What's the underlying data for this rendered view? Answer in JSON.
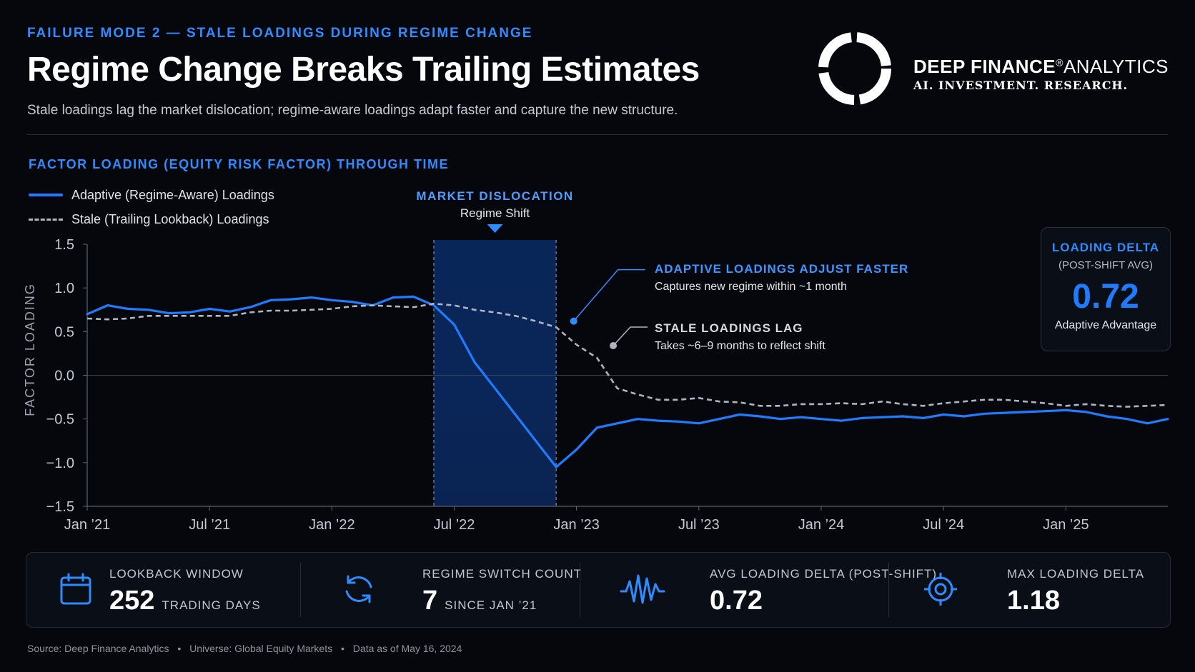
{
  "header": {
    "eyebrow": "FAILURE MODE 2 — STALE LOADINGS DURING REGIME CHANGE",
    "title": "Regime Change Breaks Trailing Estimates",
    "subtitle": "Stale loadings lag the market dislocation; regime-aware loadings adapt faster and capture the new structure."
  },
  "brand": {
    "name_bold": "DEEP FINANCE",
    "registered": "®",
    "name_light": "ANALYTICS",
    "tagline": "AI. INVESTMENT. RESEARCH.",
    "logo_icon": "ring-logo-icon"
  },
  "chart_heading": "FACTOR LOADING (EQUITY RISK FACTOR) THROUGH TIME",
  "legend": {
    "adaptive": "Adaptive (Regime-Aware) Loadings",
    "stale": "Stale (Trailing Lookback) Loadings"
  },
  "annotations": {
    "dislocation_title": "MARKET DISLOCATION",
    "dislocation_sub": "Regime Shift",
    "adaptive_title": "ADAPTIVE LOADINGS ADJUST FASTER",
    "adaptive_sub": "Captures new regime within ~1 month",
    "stale_title": "STALE LOADINGS LAG",
    "stale_sub": "Takes ~6–9 months to reflect shift"
  },
  "delta_card": {
    "label": "LOADING DELTA",
    "sublabel": "(POST-SHIFT AVG)",
    "value": "0.72",
    "caption": "Adaptive Advantage"
  },
  "stats": [
    {
      "icon": "calendar-icon",
      "label": "LOOKBACK WINDOW",
      "value": "252",
      "unit": "TRADING DAYS"
    },
    {
      "icon": "refresh-icon",
      "label": "REGIME SWITCH COUNT",
      "value": "7",
      "unit": "SINCE JAN ’21"
    },
    {
      "icon": "wave-icon",
      "label": "AVG LOADING DELTA (POST-SHIFT)",
      "value": "0.72",
      "unit": ""
    },
    {
      "icon": "target-icon",
      "label": "MAX LOADING DELTA",
      "value": "1.18",
      "unit": ""
    }
  ],
  "footer": {
    "source": "Source:  Deep Finance Analytics",
    "universe": "Universe: Global Equity Markets",
    "asof": "Data as of May 16, 2024",
    "bullet": "•"
  },
  "colors": {
    "accent": "#2f8cff",
    "adaptive_line": "#1f7cff",
    "stale_line": "#aeb5c2",
    "background": "#05070d"
  },
  "chart_data": {
    "type": "line",
    "ylabel": "FACTOR LOADING",
    "xlabel": "",
    "ylim": [
      -1.5,
      1.5
    ],
    "yticks": [
      1.5,
      1.0,
      0.5,
      0.0,
      -0.5,
      -1.0,
      -1.5
    ],
    "ytick_labels": [
      "1.5",
      "1.0",
      "0.5",
      "0.0",
      "−0.5",
      "−1.0",
      "−1.5"
    ],
    "xlim": [
      "2021-01",
      "2025-06"
    ],
    "xticks": [
      "2021-01",
      "2021-07",
      "2022-01",
      "2022-07",
      "2023-01",
      "2023-07",
      "2024-01",
      "2024-07",
      "2025-01"
    ],
    "xtick_labels": [
      "Jan ’21",
      "Jul ’21",
      "Jan ’22",
      "Jul ’22",
      "Jan ’23",
      "Jul ’23",
      "Jan ’24",
      "Jul ’24",
      "Jan ’25"
    ],
    "shaded_region": {
      "start": "2022-06",
      "end": "2022-12",
      "label": "MARKET DISLOCATION"
    },
    "x": [
      "2021-01",
      "2021-02",
      "2021-03",
      "2021-04",
      "2021-05",
      "2021-06",
      "2021-07",
      "2021-08",
      "2021-09",
      "2021-10",
      "2021-11",
      "2021-12",
      "2022-01",
      "2022-02",
      "2022-03",
      "2022-04",
      "2022-05",
      "2022-06",
      "2022-07",
      "2022-08",
      "2022-09",
      "2022-10",
      "2022-11",
      "2022-12",
      "2023-01",
      "2023-02",
      "2023-03",
      "2023-04",
      "2023-05",
      "2023-06",
      "2023-07",
      "2023-08",
      "2023-09",
      "2023-10",
      "2023-11",
      "2023-12",
      "2024-01",
      "2024-02",
      "2024-03",
      "2024-04",
      "2024-05",
      "2024-06",
      "2024-07",
      "2024-08",
      "2024-09",
      "2024-10",
      "2024-11",
      "2024-12",
      "2025-01",
      "2025-02",
      "2025-03",
      "2025-04",
      "2025-05",
      "2025-06"
    ],
    "series": [
      {
        "name": "Adaptive (Regime-Aware) Loadings",
        "style": "solid",
        "values": [
          0.7,
          0.8,
          0.76,
          0.75,
          0.71,
          0.72,
          0.76,
          0.73,
          0.78,
          0.86,
          0.87,
          0.89,
          0.86,
          0.84,
          0.8,
          0.89,
          0.9,
          0.8,
          0.58,
          0.15,
          -0.15,
          -0.45,
          -0.75,
          -1.05,
          -0.85,
          -0.6,
          -0.55,
          -0.5,
          -0.52,
          -0.53,
          -0.55,
          -0.5,
          -0.45,
          -0.47,
          -0.5,
          -0.48,
          -0.5,
          -0.52,
          -0.49,
          -0.48,
          -0.47,
          -0.49,
          -0.45,
          -0.47,
          -0.44,
          -0.43,
          -0.42,
          -0.41,
          -0.4,
          -0.42,
          -0.47,
          -0.5,
          -0.55,
          -0.5
        ]
      },
      {
        "name": "Stale (Trailing Lookback) Loadings",
        "style": "dashed",
        "values": [
          0.65,
          0.64,
          0.65,
          0.68,
          0.68,
          0.68,
          0.68,
          0.68,
          0.72,
          0.74,
          0.74,
          0.75,
          0.76,
          0.79,
          0.8,
          0.79,
          0.78,
          0.82,
          0.8,
          0.75,
          0.72,
          0.68,
          0.62,
          0.55,
          0.35,
          0.2,
          -0.15,
          -0.22,
          -0.28,
          -0.28,
          -0.26,
          -0.3,
          -0.31,
          -0.35,
          -0.35,
          -0.33,
          -0.33,
          -0.32,
          -0.33,
          -0.3,
          -0.33,
          -0.35,
          -0.32,
          -0.3,
          -0.28,
          -0.28,
          -0.3,
          -0.32,
          -0.35,
          -0.33,
          -0.35,
          -0.36,
          -0.35,
          -0.34
        ]
      }
    ]
  }
}
